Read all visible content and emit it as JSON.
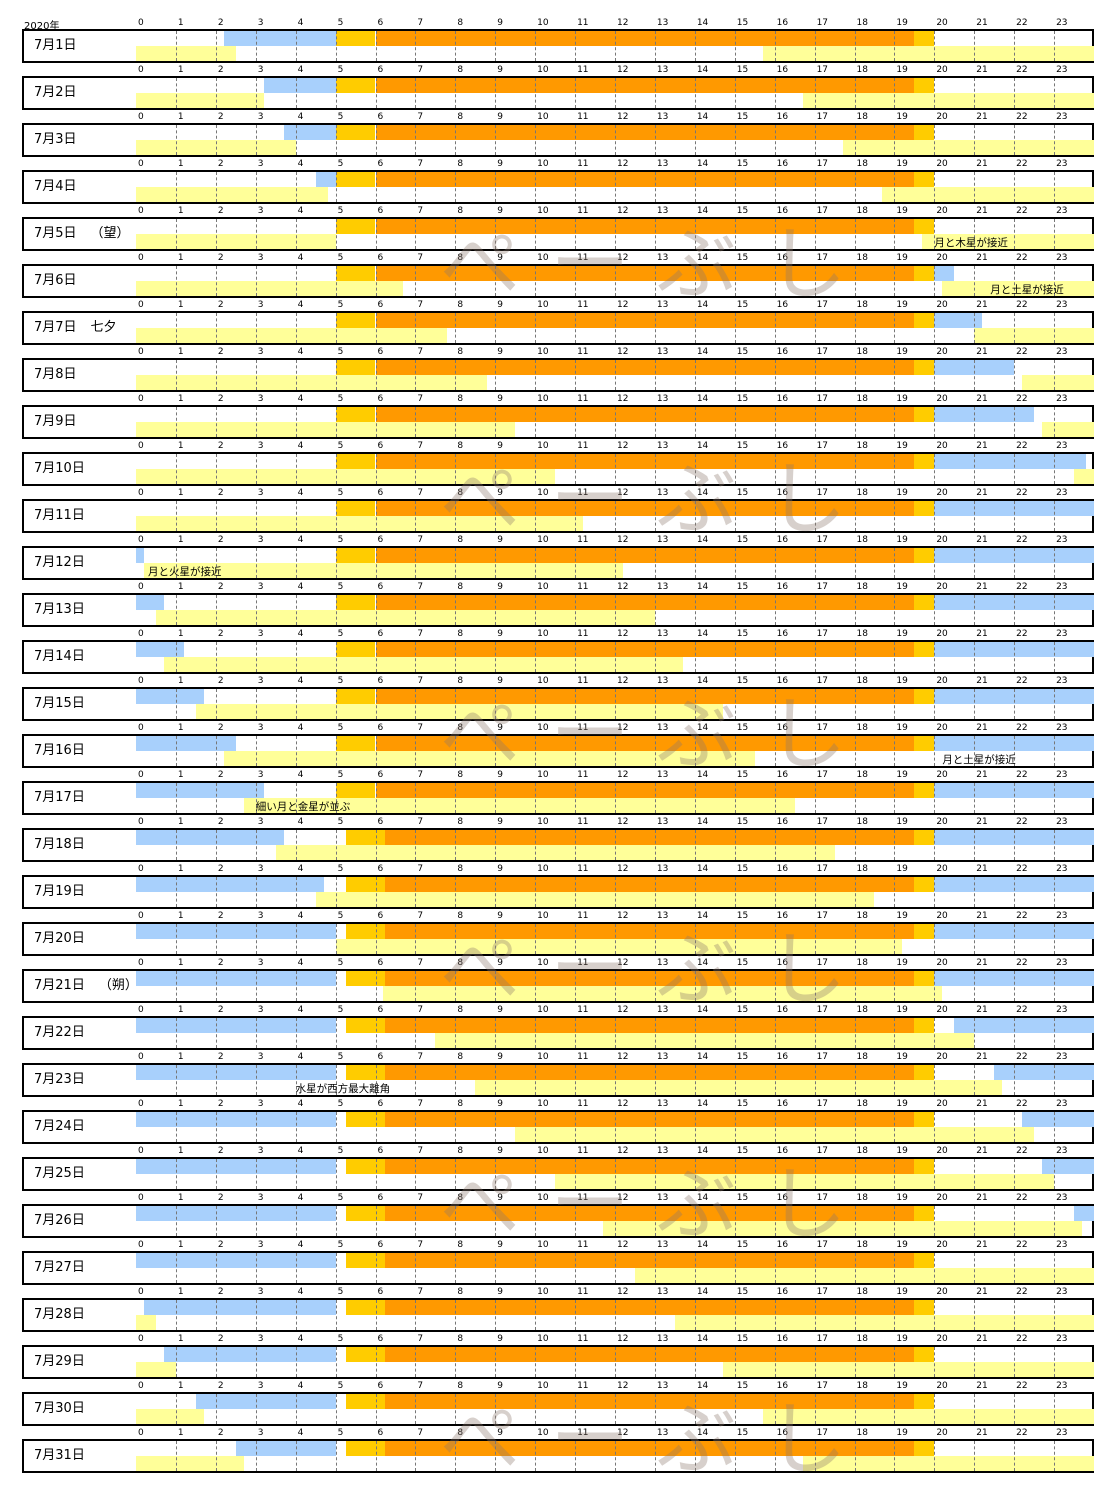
{
  "chart_data": {
    "type": "timeline",
    "title": "2020年",
    "hours": [
      0,
      1,
      2,
      3,
      4,
      5,
      6,
      7,
      8,
      9,
      10,
      11,
      12,
      13,
      14,
      15,
      16,
      17,
      18,
      19,
      20,
      21,
      22,
      23
    ],
    "colors": {
      "night": "#ffffff",
      "twilight": "#a8d0fc",
      "sunrise_sunset": "#ffcc00",
      "day": "#ff9900",
      "moon_visible": "#ffff99"
    },
    "days": [
      {
        "label": "7月1日",
        "extra": "",
        "twilight": [
          [
            2.2,
            5.0
          ]
        ],
        "moon": [
          [
            0,
            2.5
          ],
          [
            15.7,
            24
          ]
        ],
        "event": ""
      },
      {
        "label": "7月2日",
        "extra": "",
        "twilight": [
          [
            3.2,
            5.0
          ]
        ],
        "moon": [
          [
            0,
            3.2
          ],
          [
            16.7,
            24
          ]
        ],
        "event": ""
      },
      {
        "label": "7月3日",
        "extra": "",
        "twilight": [
          [
            3.7,
            5.0
          ]
        ],
        "moon": [
          [
            0,
            4.0
          ],
          [
            17.7,
            24
          ]
        ],
        "event": ""
      },
      {
        "label": "7月4日",
        "extra": "",
        "twilight": [
          [
            4.5,
            5.0
          ]
        ],
        "moon": [
          [
            0,
            4.8
          ],
          [
            18.7,
            24
          ]
        ],
        "event": ""
      },
      {
        "label": "7月5日",
        "extra": "（望）",
        "twilight": [],
        "moon": [
          [
            0,
            5.0
          ],
          [
            19.7,
            24
          ]
        ],
        "event": "月と木星が接近",
        "event_hour": 20.0
      },
      {
        "label": "7月6日",
        "extra": "",
        "twilight": [
          [
            20.0,
            20.5
          ]
        ],
        "moon": [
          [
            0,
            6.7
          ],
          [
            20.2,
            24
          ]
        ],
        "event": "月と土星が接近",
        "event_hour": 21.4
      },
      {
        "label": "7月7日",
        "extra": "七夕",
        "twilight": [
          [
            20.0,
            21.2
          ]
        ],
        "moon": [
          [
            0,
            7.8
          ],
          [
            21.0,
            24
          ]
        ],
        "event": ""
      },
      {
        "label": "7月8日",
        "extra": "",
        "twilight": [
          [
            20.0,
            22.0
          ]
        ],
        "moon": [
          [
            0,
            8.8
          ],
          [
            22.2,
            24
          ]
        ],
        "event": ""
      },
      {
        "label": "7月9日",
        "extra": "",
        "twilight": [
          [
            20.0,
            22.5
          ]
        ],
        "moon": [
          [
            0,
            9.5
          ],
          [
            22.7,
            24
          ]
        ],
        "event": ""
      },
      {
        "label": "7月10日",
        "extra": "",
        "twilight": [
          [
            20.0,
            23.8
          ]
        ],
        "moon": [
          [
            0,
            10.5
          ],
          [
            23.5,
            24
          ]
        ],
        "event": ""
      },
      {
        "label": "7月11日",
        "extra": "",
        "twilight": [
          [
            20.0,
            24
          ]
        ],
        "moon": [
          [
            0,
            11.2
          ]
        ],
        "event": ""
      },
      {
        "label": "7月12日",
        "extra": "",
        "twilight": [
          [
            0,
            0.2
          ],
          [
            20.0,
            24
          ]
        ],
        "moon": [
          [
            0.2,
            12.2
          ]
        ],
        "event": "月と火星が接近",
        "event_hour": 0.3
      },
      {
        "label": "7月13日",
        "extra": "",
        "twilight": [
          [
            0,
            0.7
          ],
          [
            20.0,
            24
          ]
        ],
        "moon": [
          [
            0.5,
            13.0
          ]
        ],
        "event": ""
      },
      {
        "label": "7月14日",
        "extra": "",
        "twilight": [
          [
            0,
            1.2
          ],
          [
            20.0,
            24
          ]
        ],
        "moon": [
          [
            0.7,
            13.7
          ]
        ],
        "event": ""
      },
      {
        "label": "7月15日",
        "extra": "",
        "twilight": [
          [
            0,
            1.7
          ],
          [
            20.0,
            24
          ]
        ],
        "moon": [
          [
            1.5,
            14.7
          ]
        ],
        "event": ""
      },
      {
        "label": "7月16日",
        "extra": "",
        "twilight": [
          [
            0,
            2.5
          ],
          [
            20.0,
            24
          ]
        ],
        "moon": [
          [
            2.2,
            15.5
          ]
        ],
        "event": "月と土星が接近",
        "event_hour": 20.2
      },
      {
        "label": "7月17日",
        "extra": "",
        "twilight": [
          [
            0,
            3.2
          ],
          [
            20.0,
            24
          ]
        ],
        "moon": [
          [
            2.7,
            16.5
          ]
        ],
        "event": "細い月と金星が並ぶ",
        "event_hour": 3.0
      },
      {
        "label": "7月18日",
        "extra": "",
        "twilight": [
          [
            0,
            3.7
          ],
          [
            20.0,
            24
          ]
        ],
        "moon": [
          [
            3.5,
            17.5
          ]
        ],
        "event": ""
      },
      {
        "label": "7月19日",
        "extra": "",
        "twilight": [
          [
            0,
            4.7
          ],
          [
            20.0,
            24
          ]
        ],
        "moon": [
          [
            4.5,
            18.5
          ]
        ],
        "event": ""
      },
      {
        "label": "7月20日",
        "extra": "",
        "twilight": [
          [
            0,
            5.0
          ],
          [
            20.0,
            24
          ]
        ],
        "moon": [
          [
            5.0,
            19.2
          ]
        ],
        "event": ""
      },
      {
        "label": "7月21日",
        "extra": "（朔）",
        "twilight": [
          [
            0,
            5.0
          ],
          [
            20.0,
            24
          ]
        ],
        "moon": [
          [
            6.2,
            20.2
          ]
        ],
        "event": ""
      },
      {
        "label": "7月22日",
        "extra": "",
        "twilight": [
          [
            0,
            5.0
          ],
          [
            20.5,
            24
          ]
        ],
        "moon": [
          [
            7.5,
            21.0
          ]
        ],
        "event": ""
      },
      {
        "label": "7月23日",
        "extra": "",
        "twilight": [
          [
            0,
            5.0
          ],
          [
            21.5,
            24
          ]
        ],
        "moon": [
          [
            8.5,
            21.7
          ]
        ],
        "event": "水星が西方最大離角",
        "event_hour": 4.0
      },
      {
        "label": "7月24日",
        "extra": "",
        "twilight": [
          [
            0,
            5.0
          ],
          [
            22.2,
            24
          ]
        ],
        "moon": [
          [
            9.5,
            22.5
          ]
        ],
        "event": ""
      },
      {
        "label": "7月25日",
        "extra": "",
        "twilight": [
          [
            0,
            5.0
          ],
          [
            22.7,
            24
          ]
        ],
        "moon": [
          [
            10.5,
            23.0
          ]
        ],
        "event": ""
      },
      {
        "label": "7月26日",
        "extra": "",
        "twilight": [
          [
            0,
            5.0
          ],
          [
            23.5,
            24
          ]
        ],
        "moon": [
          [
            11.7,
            23.7
          ]
        ],
        "event": ""
      },
      {
        "label": "7月27日",
        "extra": "",
        "twilight": [
          [
            0,
            5.0
          ]
        ],
        "moon": [
          [
            12.5,
            24
          ]
        ],
        "event": ""
      },
      {
        "label": "7月28日",
        "extra": "",
        "twilight": [
          [
            0.2,
            5.0
          ]
        ],
        "moon": [
          [
            0,
            0.5
          ],
          [
            13.5,
            24
          ]
        ],
        "event": ""
      },
      {
        "label": "7月29日",
        "extra": "",
        "twilight": [
          [
            0.7,
            5.0
          ]
        ],
        "moon": [
          [
            0,
            1.0
          ],
          [
            14.7,
            24
          ]
        ],
        "event": ""
      },
      {
        "label": "7月30日",
        "extra": "",
        "twilight": [
          [
            1.5,
            5.0
          ]
        ],
        "moon": [
          [
            0,
            1.7
          ],
          [
            15.7,
            24
          ]
        ],
        "event": ""
      },
      {
        "label": "7月31日",
        "extra": "",
        "twilight": [
          [
            2.5,
            5.0
          ]
        ],
        "moon": [
          [
            0,
            2.7
          ],
          [
            16.7,
            24
          ]
        ],
        "event": ""
      }
    ],
    "sunrise_bands": [
      {
        "from_day": 0,
        "to_day": 16,
        "sunrise": [
          5.0,
          6.0
        ],
        "day": [
          6.0,
          19.5
        ],
        "sunset": [
          19.5,
          20.0
        ]
      },
      {
        "from_day": 17,
        "to_day": 30,
        "sunrise": [
          5.25,
          6.25
        ],
        "day": [
          6.25,
          19.5
        ],
        "sunset": [
          19.5,
          20.0
        ]
      }
    ]
  },
  "watermark": "ぺーぶし"
}
